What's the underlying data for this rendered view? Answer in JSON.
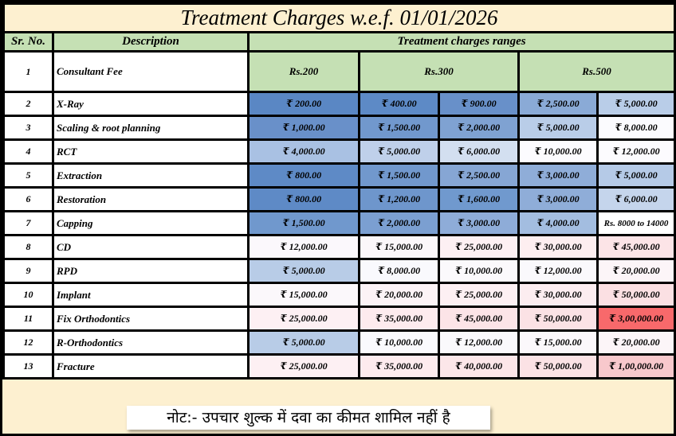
{
  "title": "Treatment Charges w.e.f. 01/01/2026",
  "headers": {
    "sr_no": "Sr. No.",
    "description": "Description",
    "ranges": "Treatment charges ranges"
  },
  "consultant": {
    "sr": "1",
    "description": "Consultant Fee",
    "rates": [
      "Rs.200",
      "Rs.300",
      "Rs.500"
    ]
  },
  "rows": [
    {
      "sr": "2",
      "description": "X-Ray",
      "charges": [
        "₹ 200.00",
        "₹ 400.00",
        "₹ 900.00",
        "₹ 2,500.00",
        "₹ 5,000.00"
      ],
      "colors": [
        "#5a87c4",
        "#5d8ac6",
        "#6890c9",
        "#8aaad6",
        "#b9cde8"
      ]
    },
    {
      "sr": "3",
      "description": "Scaling & root planning",
      "charges": [
        "₹ 1,000.00",
        "₹ 1,500.00",
        "₹ 2,000.00",
        "₹ 5,000.00",
        "₹ 8,000.00"
      ],
      "colors": [
        "#6990c9",
        "#7198cd",
        "#7fa2d2",
        "#b9cde8",
        "#fbfbfe"
      ]
    },
    {
      "sr": "4",
      "description": "RCT",
      "charges": [
        "₹ 4,000.00",
        "₹ 5,000.00",
        "₹ 6,000.00",
        "₹ 10,000.00",
        "₹ 12,000.00"
      ],
      "colors": [
        "#a9c1e3",
        "#bfd0ea",
        "#d3dff0",
        "#fcfbfe",
        "#fcfbfe"
      ]
    },
    {
      "sr": "5",
      "description": "Extraction",
      "charges": [
        "₹ 800.00",
        "₹ 1,500.00",
        "₹ 2,500.00",
        "₹ 3,000.00",
        "₹ 5,000.00"
      ],
      "colors": [
        "#5e8ac6",
        "#7198cd",
        "#86a6d4",
        "#8fadd8",
        "#b5cae7"
      ]
    },
    {
      "sr": "6",
      "description": "Restoration",
      "charges": [
        "₹ 800.00",
        "₹ 1,200.00",
        "₹ 1,600.00",
        "₹ 3,000.00",
        "₹ 6,000.00"
      ],
      "colors": [
        "#5e8ac6",
        "#6e96cc",
        "#7099ce",
        "#8fadd8",
        "#c5d5ec"
      ]
    },
    {
      "sr": "7",
      "description": "Capping",
      "charges": [
        "₹ 1,500.00",
        "₹ 2,000.00",
        "₹ 3,000.00",
        "₹ 4,000.00",
        "Rs. 8000 to 14000"
      ],
      "colors": [
        "#7098cd",
        "#7b9fd1",
        "#8eacd8",
        "#a3bde0",
        "#ffffff"
      ]
    },
    {
      "sr": "8",
      "description": "CD",
      "charges": [
        "₹ 12,000.00",
        "₹ 15,000.00",
        "₹ 25,000.00",
        "₹ 30,000.00",
        "₹ 45,000.00"
      ],
      "colors": [
        "#fbf8fc",
        "#fbf7fa",
        "#fdf0f3",
        "#fdeef0",
        "#fce4e7"
      ]
    },
    {
      "sr": "9",
      "description": "RPD",
      "charges": [
        "₹ 5,000.00",
        "₹ 8,000.00",
        "₹ 10,000.00",
        "₹ 12,000.00",
        "₹ 20,000.00"
      ],
      "colors": [
        "#b8cce7",
        "#f9f9fd",
        "#fbf9fc",
        "#faf9fc",
        "#fcf5f8"
      ]
    },
    {
      "sr": "10",
      "description": "Implant",
      "charges": [
        "₹ 15,000.00",
        "₹ 20,000.00",
        "₹ 25,000.00",
        "₹ 30,000.00",
        "₹ 50,000.00"
      ],
      "colors": [
        "#fbf8fb",
        "#fcf3f6",
        "#fdf0f3",
        "#fcedf0",
        "#fbe0e3"
      ]
    },
    {
      "sr": "11",
      "description": "Fix Orthodontics",
      "charges": [
        "₹ 25,000.00",
        "₹ 35,000.00",
        "₹ 45,000.00",
        "₹ 50,000.00",
        "₹ 3,00,000.00"
      ],
      "colors": [
        "#fdf0f3",
        "#fdebee",
        "#fce4e7",
        "#fbe2e5",
        "#f8696b"
      ]
    },
    {
      "sr": "12",
      "description": "R-Orthodontics",
      "charges": [
        "₹ 5,000.00",
        "₹ 10,000.00",
        "₹ 12,000.00",
        "₹ 15,000.00",
        "₹ 20,000.00"
      ],
      "colors": [
        "#b8cce7",
        "#fafafd",
        "#faf9fc",
        "#fbf8fb",
        "#fcf5f8"
      ]
    },
    {
      "sr": "13",
      "description": "Fracture",
      "charges": [
        "₹ 25,000.00",
        "₹ 35,000.00",
        "₹ 40,000.00",
        "₹ 50,000.00",
        "₹ 1,00,000.00"
      ],
      "colors": [
        "#fdf0f3",
        "#fdebee",
        "#fce6e9",
        "#fbe2e5",
        "#f8c8cc"
      ]
    }
  ],
  "note": "नोट:- उपचार शुल्क में दवा का कीमत शामिल नहीं है"
}
